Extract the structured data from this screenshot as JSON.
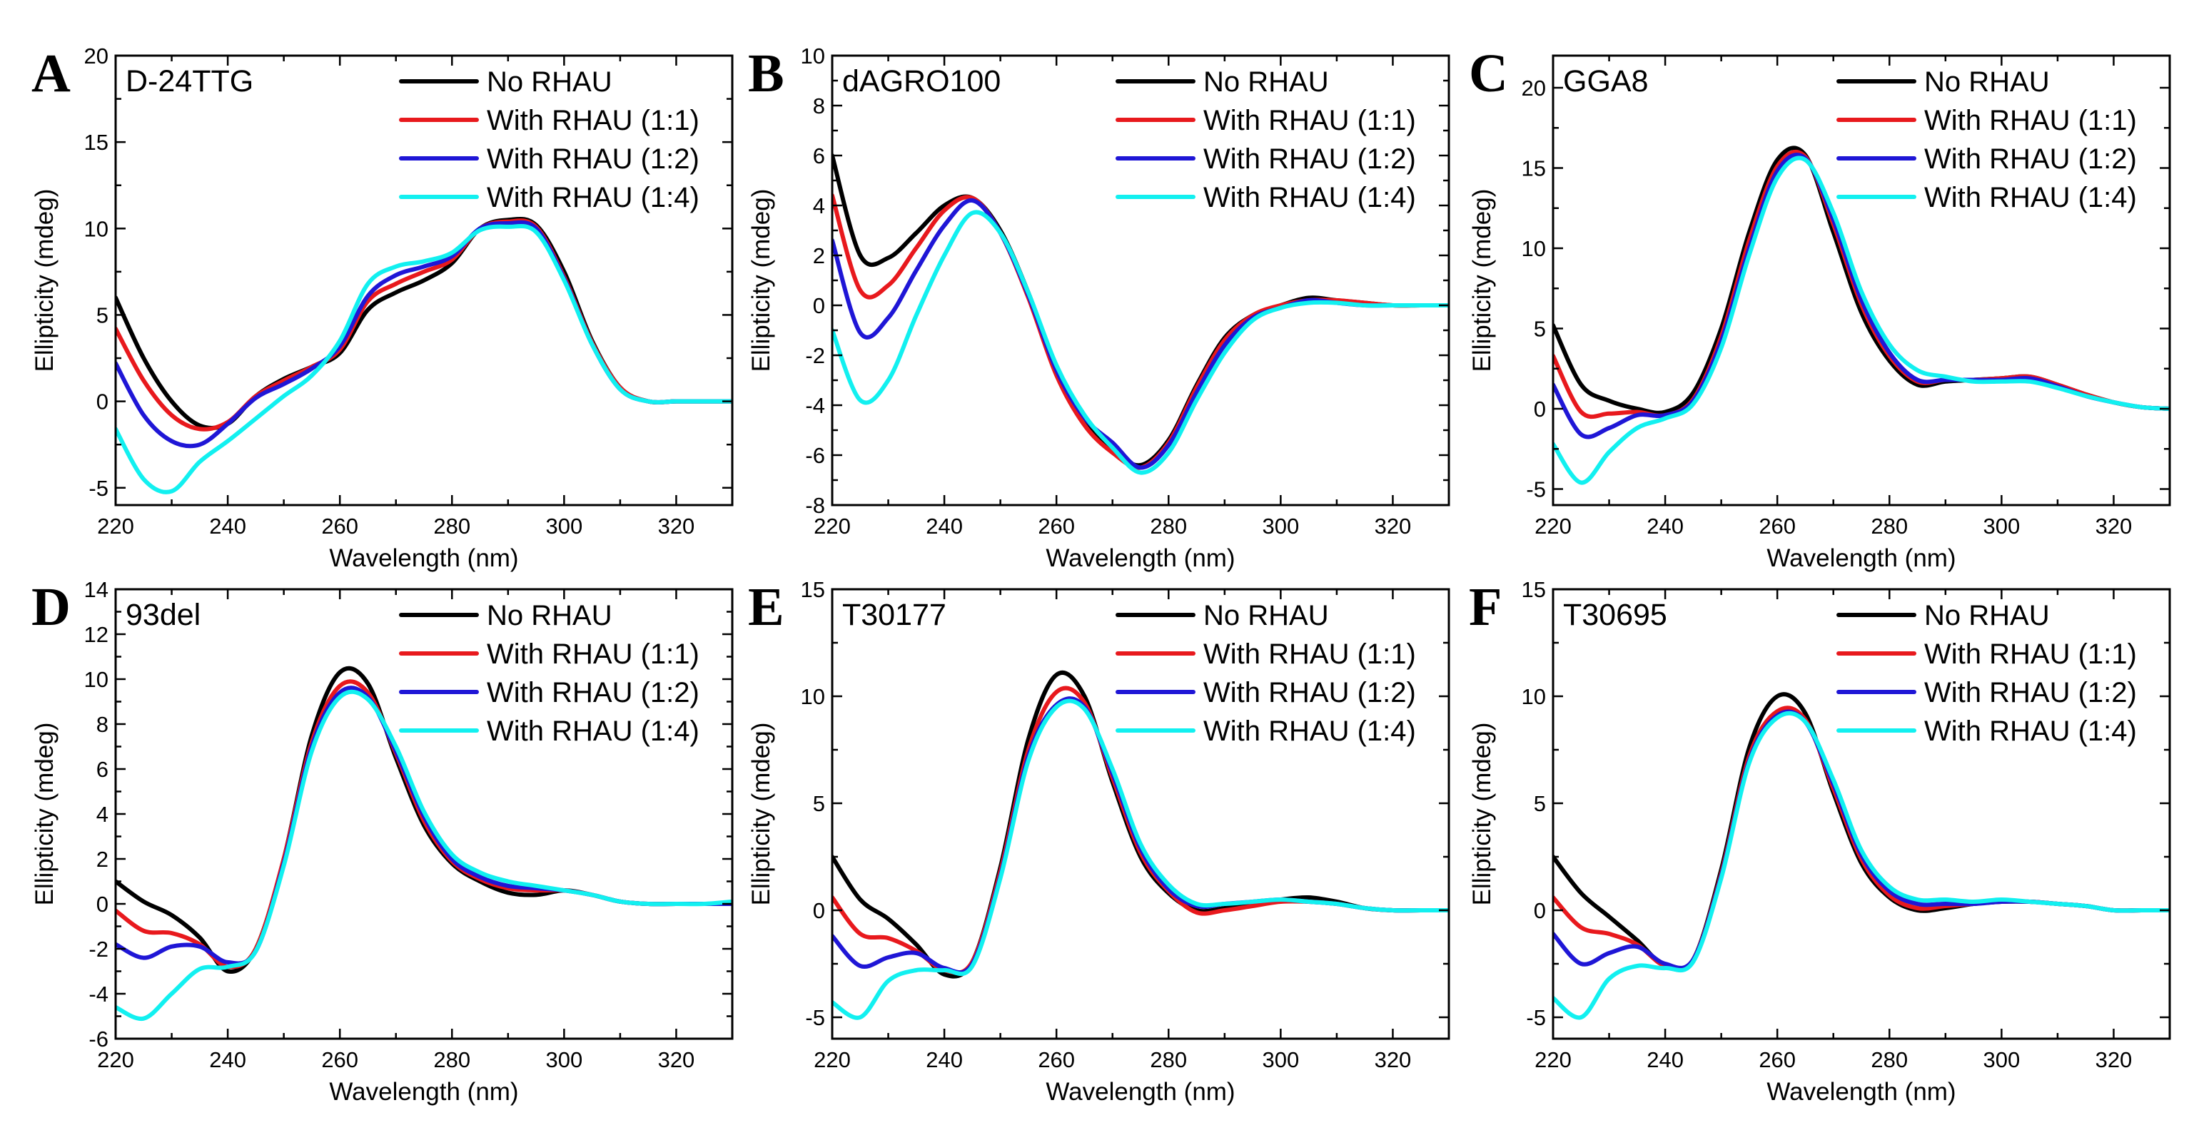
{
  "figure": {
    "colors": {
      "no_rhau": "#000000",
      "rhau_1_1": "#e8191d",
      "rhau_1_2": "#1f16d6",
      "rhau_1_4": "#12f0f0"
    }
  },
  "chart_data": [
    {
      "type": "line",
      "panel": "A",
      "title": "D-24TTG",
      "xlabel": "Wavelength (nm)",
      "ylabel": "Ellipticity (mdeg)",
      "xlim": [
        220,
        330
      ],
      "ylim": [
        -6,
        20
      ],
      "xticks": [
        220,
        240,
        260,
        280,
        300,
        320
      ],
      "yticks": [
        -5,
        0,
        5,
        10,
        15,
        20
      ],
      "legend": [
        "No RHAU",
        "With RHAU (1:1)",
        "With RHAU (1:2)",
        "With RHAU (1:4)"
      ],
      "x": [
        220,
        225,
        230,
        235,
        240,
        245,
        250,
        255,
        260,
        265,
        270,
        275,
        280,
        285,
        290,
        295,
        300,
        305,
        310,
        315,
        320,
        325,
        330
      ],
      "series": [
        {
          "name": "No RHAU",
          "values": [
            6,
            2.5,
            0,
            -1.4,
            -1.3,
            0.3,
            1.3,
            2,
            2.8,
            5.3,
            6.3,
            7,
            8,
            10,
            10.5,
            10.2,
            7.5,
            3.5,
            0.8,
            0,
            0,
            0,
            0
          ]
        },
        {
          "name": "With RHAU (1:1)",
          "values": [
            4.2,
            1.2,
            -0.8,
            -1.6,
            -1.2,
            0.3,
            1.2,
            2,
            3,
            5.8,
            6.8,
            7.5,
            8.2,
            10,
            10.4,
            10.1,
            7.2,
            3.4,
            0.8,
            0,
            0,
            0,
            0
          ]
        },
        {
          "name": "With RHAU (1:2)",
          "values": [
            2.2,
            -0.8,
            -2.3,
            -2.5,
            -1.3,
            0.2,
            1,
            1.9,
            3.2,
            6.1,
            7.3,
            7.8,
            8.4,
            10,
            10.3,
            10,
            7.1,
            3.3,
            0.7,
            0,
            0,
            0,
            0
          ]
        },
        {
          "name": "With RHAU (1:4)",
          "values": [
            -1.6,
            -4.5,
            -5.2,
            -3.5,
            -2.3,
            -1,
            0.3,
            1.5,
            3.5,
            6.8,
            7.8,
            8.1,
            8.6,
            9.9,
            10.1,
            9.8,
            7,
            3.3,
            0.7,
            0,
            0,
            0,
            0
          ]
        }
      ]
    },
    {
      "type": "line",
      "panel": "B",
      "title": "dAGRO100",
      "xlabel": "Wavelength (nm)",
      "ylabel": "Ellipticity (mdeg)",
      "xlim": [
        220,
        330
      ],
      "ylim": [
        -8,
        10
      ],
      "xticks": [
        220,
        240,
        260,
        280,
        300,
        320
      ],
      "yticks": [
        -8,
        -6,
        -4,
        -2,
        0,
        2,
        4,
        6,
        8,
        10
      ],
      "legend": [
        "No RHAU",
        "With RHAU (1:1)",
        "With RHAU (1:2)",
        "With RHAU (1:4)"
      ],
      "x": [
        220,
        225,
        230,
        235,
        240,
        245,
        250,
        255,
        260,
        265,
        270,
        275,
        280,
        285,
        290,
        295,
        300,
        305,
        310,
        315,
        320,
        325,
        330
      ],
      "series": [
        {
          "name": "No RHAU",
          "values": [
            6,
            2,
            1.9,
            2.9,
            4,
            4.3,
            3,
            0.5,
            -2.5,
            -4.5,
            -5.8,
            -6.4,
            -5.4,
            -3.2,
            -1.3,
            -0.4,
            0,
            0.3,
            0.2,
            0.1,
            0,
            0,
            0
          ]
        },
        {
          "name": "With RHAU (1:1)",
          "values": [
            4.4,
            0.6,
            0.8,
            2.3,
            3.8,
            4.3,
            2.9,
            0.3,
            -2.8,
            -4.8,
            -5.9,
            -6.5,
            -5.5,
            -3.3,
            -1.4,
            -0.4,
            0,
            0.2,
            0.2,
            0.1,
            0,
            0,
            0
          ]
        },
        {
          "name": "With RHAU (1:2)",
          "values": [
            2.6,
            -1.1,
            -0.5,
            1.4,
            3.2,
            4.2,
            2.9,
            0.4,
            -2.6,
            -4.5,
            -5.5,
            -6.5,
            -5.6,
            -3.5,
            -1.6,
            -0.5,
            -0.1,
            0.2,
            0.1,
            0,
            0,
            0,
            0
          ]
        },
        {
          "name": "With RHAU (1:4)",
          "values": [
            -1,
            -3.8,
            -3,
            -0.4,
            2,
            3.7,
            2.9,
            0.5,
            -2.4,
            -4.4,
            -5.7,
            -6.7,
            -5.9,
            -3.8,
            -1.9,
            -0.6,
            -0.1,
            0.1,
            0.1,
            0,
            0,
            0,
            0
          ]
        }
      ]
    },
    {
      "type": "line",
      "panel": "C",
      "title": "GGA8",
      "xlabel": "Wavelength (nm)",
      "ylabel": "Ellipticity (mdeg)",
      "xlim": [
        220,
        330
      ],
      "ylim": [
        -6,
        22
      ],
      "xticks": [
        220,
        240,
        260,
        280,
        300,
        320
      ],
      "yticks": [
        -5,
        0,
        5,
        10,
        15,
        20
      ],
      "legend": [
        "No RHAU",
        "With RHAU (1:1)",
        "With RHAU (1:2)",
        "With RHAU (1:4)"
      ],
      "x": [
        220,
        225,
        230,
        235,
        240,
        245,
        250,
        255,
        260,
        265,
        270,
        275,
        280,
        285,
        290,
        295,
        300,
        305,
        310,
        315,
        320,
        325,
        330
      ],
      "series": [
        {
          "name": "No RHAU",
          "values": [
            5.2,
            1.5,
            0.5,
            0,
            -0.2,
            1,
            5,
            11,
            15.5,
            15.8,
            11,
            6,
            3,
            1.5,
            1.7,
            1.8,
            1.9,
            2,
            1.5,
            0.9,
            0.4,
            0.1,
            0
          ]
        },
        {
          "name": "With RHAU (1:1)",
          "values": [
            3.3,
            -0.2,
            -0.3,
            -0.2,
            -0.4,
            0.6,
            4.5,
            10.5,
            15.1,
            15.7,
            11.5,
            6.5,
            3.3,
            1.7,
            1.8,
            1.8,
            1.9,
            2,
            1.5,
            0.9,
            0.4,
            0.1,
            0
          ]
        },
        {
          "name": "With RHAU (1:2)",
          "values": [
            1.5,
            -1.6,
            -1.2,
            -0.4,
            -0.4,
            0.5,
            4.2,
            10,
            14.8,
            15.6,
            11.8,
            6.8,
            3.5,
            1.8,
            1.8,
            1.8,
            1.8,
            1.9,
            1.4,
            0.8,
            0.4,
            0.1,
            0
          ]
        },
        {
          "name": "With RHAU (1:4)",
          "values": [
            -2.2,
            -4.6,
            -2.7,
            -1.2,
            -0.6,
            0.3,
            3.8,
            9.6,
            14.4,
            15.5,
            12.2,
            7.3,
            4,
            2.4,
            2,
            1.7,
            1.7,
            1.7,
            1.3,
            0.8,
            0.4,
            0.1,
            0
          ]
        }
      ]
    },
    {
      "type": "line",
      "panel": "D",
      "title": "93del",
      "xlabel": "Wavelength (nm)",
      "ylabel": "Ellipticity (mdeg)",
      "xlim": [
        220,
        330
      ],
      "ylim": [
        -6,
        14
      ],
      "xticks": [
        220,
        240,
        260,
        280,
        300,
        320
      ],
      "yticks": [
        -6,
        -4,
        -2,
        0,
        2,
        4,
        6,
        8,
        10,
        12,
        14
      ],
      "legend": [
        "No RHAU",
        "With RHAU (1:1)",
        "With RHAU (1:2)",
        "With RHAU (1:4)"
      ],
      "x": [
        220,
        225,
        230,
        235,
        240,
        245,
        250,
        255,
        260,
        265,
        270,
        275,
        280,
        285,
        290,
        295,
        300,
        305,
        310,
        315,
        320,
        325,
        330
      ],
      "series": [
        {
          "name": "No RHAU",
          "values": [
            1,
            0.1,
            -0.5,
            -1.5,
            -3,
            -2,
            2,
            7.5,
            10.3,
            9.8,
            6.5,
            3.5,
            1.8,
            1,
            0.5,
            0.4,
            0.6,
            0.4,
            0.1,
            0,
            0,
            0,
            0
          ]
        },
        {
          "name": "With RHAU (1:1)",
          "values": [
            -0.3,
            -1.2,
            -1.3,
            -1.8,
            -2.8,
            -2,
            2,
            7.2,
            9.7,
            9.4,
            6.7,
            3.7,
            1.9,
            1.1,
            0.7,
            0.6,
            0.6,
            0.4,
            0.1,
            0,
            0,
            0,
            0
          ]
        },
        {
          "name": "With RHAU (1:2)",
          "values": [
            -1.8,
            -2.4,
            -1.9,
            -1.9,
            -2.6,
            -2.1,
            1.8,
            7,
            9.4,
            9.2,
            6.8,
            3.9,
            2,
            1.2,
            0.8,
            0.7,
            0.6,
            0.4,
            0.1,
            0,
            0,
            0,
            0
          ]
        },
        {
          "name": "With RHAU (1:4)",
          "values": [
            -4.6,
            -5.1,
            -4,
            -2.9,
            -2.8,
            -2.1,
            1.7,
            6.8,
            9.2,
            9.1,
            7,
            4.1,
            2.2,
            1.4,
            1,
            0.8,
            0.6,
            0.4,
            0.1,
            0,
            0,
            0,
            0.1
          ]
        }
      ]
    },
    {
      "type": "line",
      "panel": "E",
      "title": "T30177",
      "xlabel": "Wavelength (nm)",
      "ylabel": "Ellipticity (mdeg)",
      "xlim": [
        220,
        330
      ],
      "ylim": [
        -6,
        15
      ],
      "xticks": [
        220,
        240,
        260,
        280,
        300,
        320
      ],
      "yticks": [
        -5,
        0,
        5,
        10,
        15
      ],
      "legend": [
        "No RHAU",
        "With RHAU (1:1)",
        "With RHAU (1:2)",
        "With RHAU (1:4)"
      ],
      "x": [
        220,
        225,
        230,
        235,
        240,
        245,
        250,
        255,
        260,
        265,
        270,
        275,
        280,
        285,
        290,
        295,
        300,
        305,
        310,
        315,
        320,
        325,
        330
      ],
      "series": [
        {
          "name": "No RHAU",
          "values": [
            2.5,
            0.5,
            -0.4,
            -1.6,
            -3,
            -2.4,
            2,
            8,
            11,
            10,
            6,
            2.5,
            0.8,
            0,
            0.1,
            0.3,
            0.5,
            0.6,
            0.4,
            0.1,
            0,
            0,
            0
          ]
        },
        {
          "name": "With RHAU (1:1)",
          "values": [
            0.6,
            -1.1,
            -1.3,
            -1.9,
            -2.8,
            -2.4,
            1.8,
            7.5,
            10.2,
            9.7,
            6.2,
            2.7,
            0.9,
            -0.1,
            0,
            0.2,
            0.4,
            0.4,
            0.3,
            0.1,
            0,
            0,
            0
          ]
        },
        {
          "name": "With RHAU (1:2)",
          "values": [
            -1.2,
            -2.6,
            -2.2,
            -2,
            -2.7,
            -2.5,
            1.6,
            7.2,
            9.6,
            9.5,
            6.4,
            2.9,
            1,
            0.2,
            0.3,
            0.4,
            0.5,
            0.4,
            0.3,
            0.1,
            0,
            0,
            0
          ]
        },
        {
          "name": "With RHAU (1:4)",
          "values": [
            -4.3,
            -5,
            -3.3,
            -2.8,
            -2.8,
            -2.6,
            1.5,
            7,
            9.5,
            9.4,
            6.6,
            3.1,
            1.2,
            0.3,
            0.3,
            0.4,
            0.5,
            0.4,
            0.3,
            0.1,
            0,
            0,
            0
          ]
        }
      ]
    },
    {
      "type": "line",
      "panel": "F",
      "title": "T30695",
      "xlabel": "Wavelength (nm)",
      "ylabel": "Ellipticity (mdeg)",
      "xlim": [
        220,
        330
      ],
      "ylim": [
        -6,
        15
      ],
      "xticks": [
        220,
        240,
        260,
        280,
        300,
        320
      ],
      "yticks": [
        -5,
        0,
        5,
        10,
        15
      ],
      "legend": [
        "No RHAU",
        "With RHAU (1:1)",
        "With RHAU (1:2)",
        "With RHAU (1:4)"
      ],
      "x": [
        220,
        225,
        230,
        235,
        240,
        245,
        250,
        255,
        260,
        265,
        270,
        275,
        280,
        285,
        290,
        295,
        300,
        305,
        310,
        315,
        320,
        325,
        330
      ],
      "series": [
        {
          "name": "No RHAU",
          "values": [
            2.5,
            0.8,
            -0.3,
            -1.4,
            -2.6,
            -2.3,
            1.9,
            7.6,
            10,
            9.2,
            5.5,
            2.2,
            0.6,
            0,
            0.1,
            0.3,
            0.4,
            0.4,
            0.3,
            0.2,
            0,
            0,
            0
          ]
        },
        {
          "name": "With RHAU (1:1)",
          "values": [
            0.6,
            -0.8,
            -1.1,
            -1.6,
            -2.6,
            -2.3,
            1.7,
            7.2,
            9.3,
            8.9,
            5.7,
            2.4,
            0.7,
            0.1,
            0.2,
            0.3,
            0.4,
            0.4,
            0.3,
            0.2,
            0,
            0,
            0
          ]
        },
        {
          "name": "With RHAU (1:2)",
          "values": [
            -1.1,
            -2.5,
            -2,
            -1.7,
            -2.5,
            -2.3,
            1.6,
            7,
            9.1,
            8.8,
            5.9,
            2.6,
            0.9,
            0.3,
            0.3,
            0.3,
            0.4,
            0.4,
            0.3,
            0.2,
            0,
            0,
            0
          ]
        },
        {
          "name": "With RHAU (1:4)",
          "values": [
            -4.1,
            -5,
            -3.2,
            -2.6,
            -2.7,
            -2.4,
            1.5,
            6.9,
            9,
            8.8,
            6.1,
            2.8,
            1.1,
            0.5,
            0.5,
            0.4,
            0.5,
            0.4,
            0.3,
            0.2,
            0,
            0,
            0
          ]
        }
      ]
    }
  ]
}
